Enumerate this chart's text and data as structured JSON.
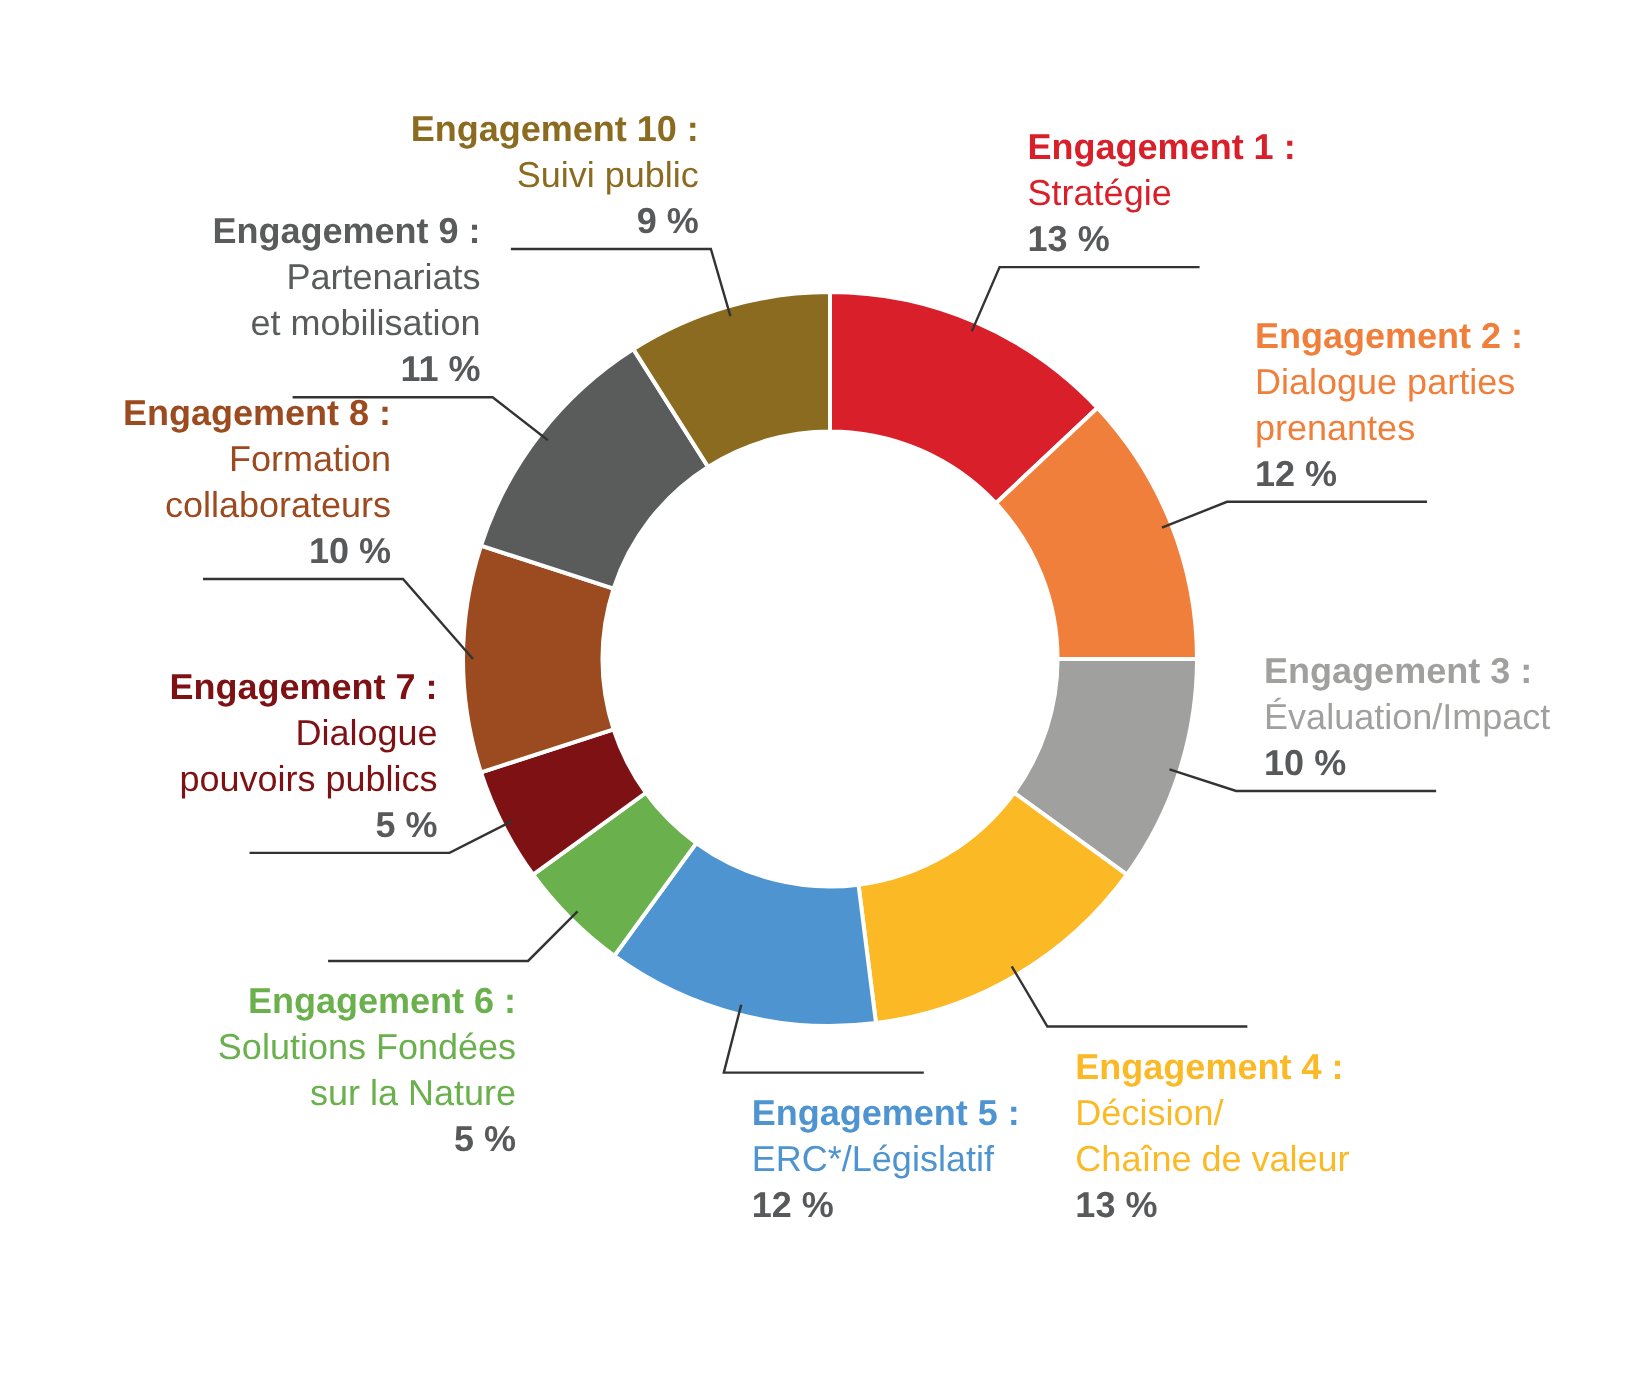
{
  "chart_data": {
    "type": "donut",
    "categories": [
      "Engagement 1 :\nStratégie",
      "Engagement 2 :\nDialogue parties\nprenantes",
      "Engagement 3 :\nÉvaluation/Impact",
      "Engagement 4 :\nDécision/\nChaîne de valeur",
      "Engagement 5 :\nERC*/Législatif",
      "Engagement 6 :\nSolutions Fondées\nsur la Nature",
      "Engagement 7 :\nDialogue\npouvoirs publics",
      "Engagement 8 :\nFormation\ncollaborateurs",
      "Engagement 9 :\nPartenariats\net mobilisation",
      "Engagement 10 :\nSuivi public"
    ],
    "values": [
      13,
      12,
      10,
      13,
      12,
      5,
      5,
      10,
      11,
      9
    ],
    "value_labels": [
      "13 %",
      "12 %",
      "10 %",
      "13 %",
      "12 %",
      "5 %",
      "5 %",
      "10 %",
      "11 %",
      "9 %"
    ],
    "colors": [
      "#d9202a",
      "#f07f3c",
      "#a0a09f",
      "#fbb926",
      "#4e94d0",
      "#6ab04c",
      "#7d1114",
      "#9c4a1f",
      "#5a5c5c",
      "#8b6b20"
    ],
    "legend": false
  }
}
